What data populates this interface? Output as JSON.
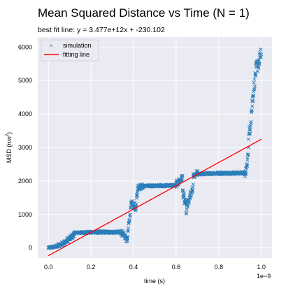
{
  "chart_data": {
    "type": "scatter",
    "title": "Mean Squared Distance vs Time (N = 1)",
    "subtitle": "best fit line: y = 3.477e+12x + -230.102",
    "xlabel": "time (s)",
    "ylabel_main": "MSD (",
    "ylabel_unit": "nm",
    "ylabel_sup": "2",
    "ylabel_end": ")",
    "x_offset_label": "1e−9",
    "xlim": [
      -0.05,
      1.05
    ],
    "ylim": [
      -300,
      6300
    ],
    "x_ticks": [
      0.0,
      0.2,
      0.4,
      0.6,
      0.8,
      1.0
    ],
    "x_tick_labels": [
      "0.0",
      "0.2",
      "0.4",
      "0.6",
      "0.8",
      "1.0"
    ],
    "y_ticks": [
      0,
      1000,
      2000,
      3000,
      4000,
      5000,
      6000
    ],
    "y_tick_labels": [
      "0",
      "1000",
      "2000",
      "3000",
      "4000",
      "5000",
      "6000"
    ],
    "grid": true,
    "legend_position": "top-left",
    "background_color": "#eaeaf2",
    "series": [
      {
        "name": "simulation",
        "kind": "points",
        "marker": "x",
        "color": "#1f77b4",
        "segments": [
          {
            "t0": 0.0,
            "t1": 0.04,
            "v0": 0,
            "v1": 50,
            "amp": 60
          },
          {
            "t0": 0.04,
            "t1": 0.08,
            "v0": 50,
            "v1": 180,
            "amp": 120
          },
          {
            "t0": 0.08,
            "t1": 0.12,
            "v0": 180,
            "v1": 380,
            "amp": 150
          },
          {
            "t0": 0.12,
            "t1": 0.22,
            "v0": 450,
            "v1": 470,
            "amp": 60
          },
          {
            "t0": 0.22,
            "t1": 0.34,
            "v0": 470,
            "v1": 470,
            "amp": 70
          },
          {
            "t0": 0.34,
            "t1": 0.37,
            "v0": 470,
            "v1": 250,
            "amp": 180
          },
          {
            "t0": 0.37,
            "t1": 0.39,
            "v0": 250,
            "v1": 1400,
            "amp": 200
          },
          {
            "t0": 0.39,
            "t1": 0.41,
            "v0": 1400,
            "v1": 1200,
            "amp": 250
          },
          {
            "t0": 0.41,
            "t1": 0.42,
            "v0": 1200,
            "v1": 1800,
            "amp": 250
          },
          {
            "t0": 0.42,
            "t1": 0.45,
            "v0": 1800,
            "v1": 1850,
            "amp": 150
          },
          {
            "t0": 0.45,
            "t1": 0.6,
            "v0": 1850,
            "v1": 1870,
            "amp": 60
          },
          {
            "t0": 0.6,
            "t1": 0.63,
            "v0": 1900,
            "v1": 2100,
            "amp": 200
          },
          {
            "t0": 0.63,
            "t1": 0.65,
            "v0": 1700,
            "v1": 1100,
            "amp": 300
          },
          {
            "t0": 0.65,
            "t1": 0.68,
            "v0": 1200,
            "v1": 1800,
            "amp": 250
          },
          {
            "t0": 0.68,
            "t1": 0.7,
            "v0": 2150,
            "v1": 2250,
            "amp": 150
          },
          {
            "t0": 0.7,
            "t1": 0.78,
            "v0": 2200,
            "v1": 2230,
            "amp": 60
          },
          {
            "t0": 0.78,
            "t1": 0.92,
            "v0": 2230,
            "v1": 2240,
            "amp": 70
          },
          {
            "t0": 0.92,
            "t1": 0.935,
            "v0": 2100,
            "v1": 2500,
            "amp": 300
          },
          {
            "t0": 0.935,
            "t1": 0.96,
            "v0": 2800,
            "v1": 4500,
            "amp": 500
          },
          {
            "t0": 0.96,
            "t1": 0.975,
            "v0": 4500,
            "v1": 5300,
            "amp": 400
          },
          {
            "t0": 0.975,
            "t1": 1.0,
            "v0": 5300,
            "v1": 5800,
            "amp": 450
          }
        ]
      },
      {
        "name": "fitting line",
        "kind": "line",
        "color": "#ff0000",
        "x": [
          0.0,
          1.0
        ],
        "y": [
          -230.102,
          3246.898
        ]
      }
    ]
  }
}
